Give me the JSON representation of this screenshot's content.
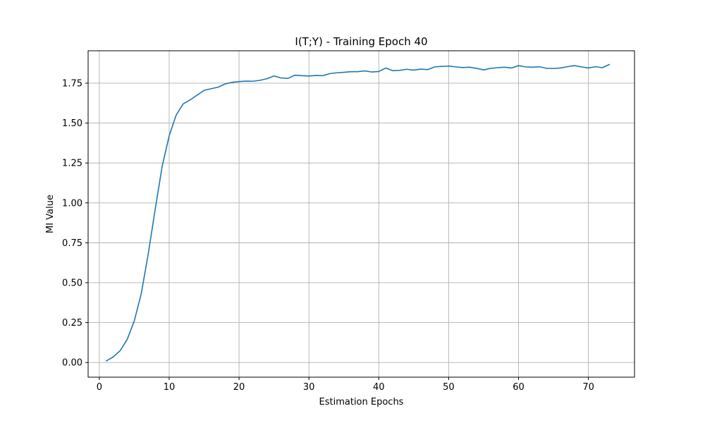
{
  "chart_data": {
    "type": "line",
    "title": "I(T;Y) - Training Epoch 40",
    "xlabel": "Estimation Epochs",
    "ylabel": "MI Value",
    "xlim": [
      -1.6,
      76.6
    ],
    "ylim": [
      -0.092,
      1.953
    ],
    "xticks": [
      0,
      10,
      20,
      30,
      40,
      50,
      60,
      70
    ],
    "yticks": [
      0.0,
      0.25,
      0.5,
      0.75,
      1.0,
      1.25,
      1.5,
      1.75
    ],
    "ytick_labels": [
      "0.00",
      "0.25",
      "0.50",
      "0.75",
      "1.00",
      "1.25",
      "1.50",
      "1.75"
    ],
    "grid": true,
    "line_color": "#1f77b4",
    "series": [
      {
        "x": [
          1,
          2,
          3,
          4,
          5,
          6,
          7,
          8,
          9,
          10,
          11,
          12,
          13,
          14,
          15,
          16,
          17,
          18,
          19,
          20,
          21,
          22,
          23,
          24,
          25,
          26,
          27,
          28,
          29,
          30,
          31,
          32,
          33,
          34,
          35,
          36,
          37,
          38,
          39,
          40,
          41,
          42,
          43,
          44,
          45,
          46,
          47,
          48,
          49,
          50,
          51,
          52,
          53,
          54,
          55,
          56,
          57,
          58,
          59,
          60,
          61,
          62,
          63,
          64,
          65,
          66,
          67,
          68,
          69,
          70,
          71,
          72,
          73
        ],
        "values": [
          0.01,
          0.035,
          0.075,
          0.145,
          0.26,
          0.43,
          0.68,
          0.96,
          1.23,
          1.42,
          1.55,
          1.62,
          1.645,
          1.675,
          1.705,
          1.715,
          1.725,
          1.745,
          1.755,
          1.76,
          1.763,
          1.762,
          1.768,
          1.778,
          1.795,
          1.783,
          1.78,
          1.8,
          1.797,
          1.795,
          1.798,
          1.797,
          1.81,
          1.815,
          1.818,
          1.822,
          1.822,
          1.827,
          1.82,
          1.823,
          1.845,
          1.828,
          1.83,
          1.837,
          1.832,
          1.838,
          1.835,
          1.852,
          1.855,
          1.857,
          1.852,
          1.848,
          1.85,
          1.843,
          1.833,
          1.843,
          1.847,
          1.85,
          1.845,
          1.86,
          1.852,
          1.85,
          1.853,
          1.843,
          1.842,
          1.845,
          1.853,
          1.86,
          1.852,
          1.845,
          1.853,
          1.847,
          1.867
        ]
      }
    ]
  }
}
